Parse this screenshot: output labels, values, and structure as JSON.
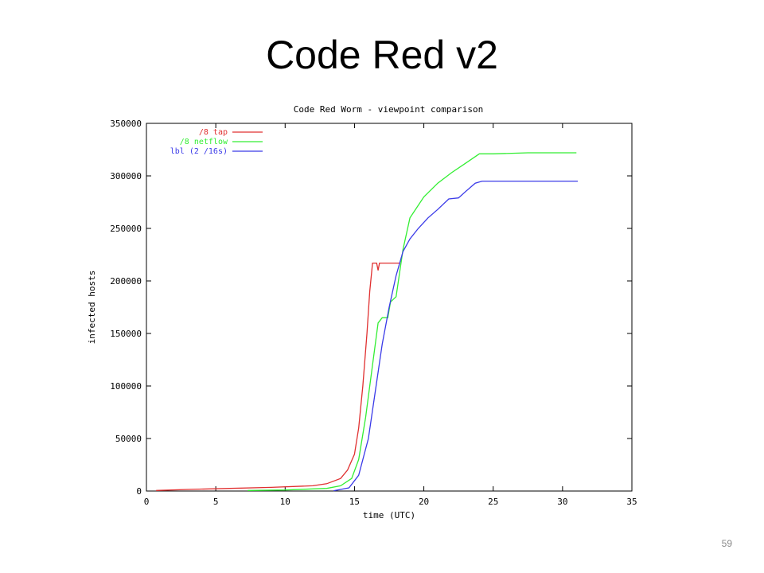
{
  "slide": {
    "title": "Code Red v2",
    "page_number": "59"
  },
  "chart_data": {
    "type": "line",
    "title": "Code Red Worm - viewpoint comparison",
    "xlabel": "time (UTC)",
    "ylabel": "infected hosts",
    "xlim": [
      0,
      35
    ],
    "ylim": [
      0,
      350000
    ],
    "x_ticks": [
      0,
      5,
      10,
      15,
      20,
      25,
      30,
      35
    ],
    "y_ticks": [
      0,
      50000,
      100000,
      150000,
      200000,
      250000,
      300000,
      350000
    ],
    "x_tick_labels": [
      "0",
      "5",
      "10",
      "15",
      "20",
      "25",
      "30",
      "35"
    ],
    "y_tick_labels": [
      "0",
      "50000",
      "100000",
      "150000",
      "200000",
      "250000",
      "300000",
      "350000"
    ],
    "grid": false,
    "legend_position": "top-left",
    "series": [
      {
        "name": "/8 tap",
        "color": "#e03030",
        "points": [
          [
            0.7,
            500
          ],
          [
            3,
            1500
          ],
          [
            6,
            2500
          ],
          [
            9,
            3500
          ],
          [
            12,
            5000
          ],
          [
            13,
            7000
          ],
          [
            14,
            12000
          ],
          [
            14.5,
            20000
          ],
          [
            15,
            35000
          ],
          [
            15.3,
            60000
          ],
          [
            15.6,
            100000
          ],
          [
            15.9,
            150000
          ],
          [
            16.1,
            190000
          ],
          [
            16.3,
            217000
          ],
          [
            16.6,
            217000
          ],
          [
            16.7,
            210000
          ],
          [
            16.8,
            217000
          ],
          [
            17.5,
            217000
          ],
          [
            18.3,
            217000
          ]
        ]
      },
      {
        "name": "/8 netflow",
        "color": "#33ee33",
        "points": [
          [
            7.3,
            500
          ],
          [
            10,
            1000
          ],
          [
            13,
            2500
          ],
          [
            14,
            5000
          ],
          [
            14.8,
            12000
          ],
          [
            15.3,
            30000
          ],
          [
            15.8,
            70000
          ],
          [
            16.3,
            120000
          ],
          [
            16.7,
            160000
          ],
          [
            17,
            165000
          ],
          [
            17.4,
            165000
          ],
          [
            17.6,
            180000
          ],
          [
            18,
            185000
          ],
          [
            18.5,
            230000
          ],
          [
            19,
            260000
          ],
          [
            20,
            280000
          ],
          [
            21,
            293000
          ],
          [
            22,
            303000
          ],
          [
            23,
            312000
          ],
          [
            24,
            321000
          ],
          [
            25,
            321000
          ],
          [
            27.5,
            322000
          ],
          [
            31,
            322000
          ]
        ]
      },
      {
        "name": "lbl (2 /16s)",
        "color": "#3a3ae8",
        "points": [
          [
            13.5,
            300
          ],
          [
            14.6,
            3000
          ],
          [
            15.3,
            15000
          ],
          [
            16,
            50000
          ],
          [
            16.5,
            95000
          ],
          [
            17,
            140000
          ],
          [
            17.5,
            175000
          ],
          [
            18,
            205000
          ],
          [
            18.5,
            228000
          ],
          [
            19,
            240000
          ],
          [
            19.6,
            250000
          ],
          [
            20.3,
            260000
          ],
          [
            21,
            268000
          ],
          [
            21.8,
            278000
          ],
          [
            22.5,
            279000
          ],
          [
            23,
            285000
          ],
          [
            23.7,
            293000
          ],
          [
            24.2,
            295000
          ],
          [
            25,
            295000
          ],
          [
            28,
            295000
          ],
          [
            31.1,
            295000
          ]
        ]
      }
    ]
  }
}
